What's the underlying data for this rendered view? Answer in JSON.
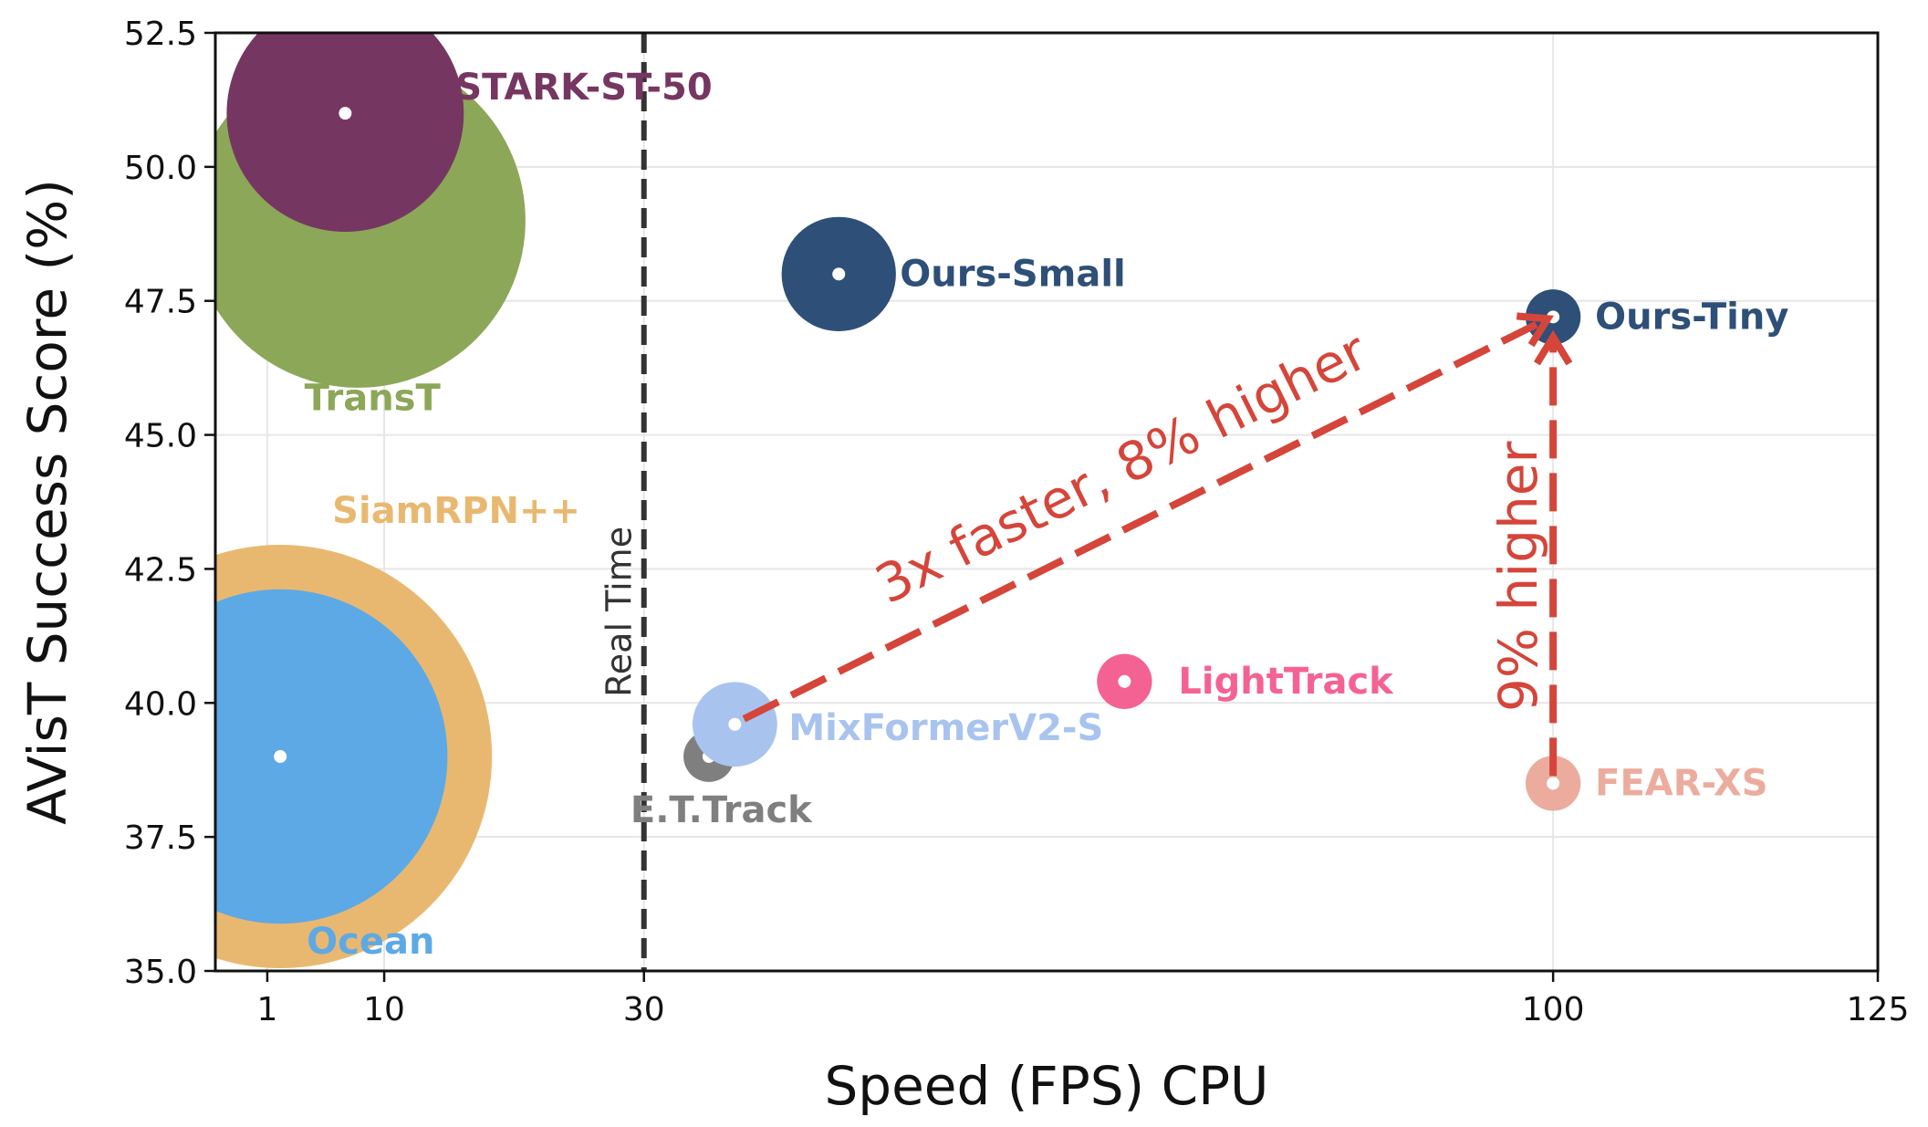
{
  "chart_data": {
    "type": "scatter",
    "xlabel": "Speed (FPS) CPU",
    "ylabel": "AVisT Success Score (%)",
    "xlim": [
      -3,
      125
    ],
    "ylim": [
      35.0,
      52.5
    ],
    "x_ticks": [
      1,
      10,
      30,
      100,
      125
    ],
    "y_ticks": [
      "35.0",
      "37.5",
      "40.0",
      "42.5",
      "45.0",
      "47.5",
      "50.0",
      "52.5"
    ],
    "grid": true,
    "reference_line": {
      "x": 30,
      "label": "Real Time",
      "style": "dashed"
    },
    "points": [
      {
        "name": "SiamRPN++",
        "x": 2,
        "y": 39.0,
        "relative_size": 1.0,
        "color": "#E9B870",
        "label_color": "#E9B870"
      },
      {
        "name": "Ocean",
        "x": 2,
        "y": 39.0,
        "relative_size": 0.79,
        "color": "#5DA9E6",
        "label_color": "#5DA9E6"
      },
      {
        "name": "TransT",
        "x": 8,
        "y": 49.0,
        "relative_size": 0.79,
        "color": "#8CA757",
        "label_color": "#8CA757"
      },
      {
        "name": "STARK-ST-50",
        "x": 7,
        "y": 51.0,
        "relative_size": 0.56,
        "color": "#763662",
        "label_color": "#763662"
      },
      {
        "name": "E.T.Track",
        "x": 35,
        "y": 39.0,
        "relative_size": 0.12,
        "color": "#7F7F7F",
        "label_color": "#7F7F7F"
      },
      {
        "name": "MixFormerV2-S",
        "x": 37,
        "y": 39.6,
        "relative_size": 0.2,
        "color": "#A8C4EE",
        "label_color": "#A8C4EE"
      },
      {
        "name": "Ours-Small",
        "x": 45,
        "y": 48.0,
        "relative_size": 0.27,
        "color": "#2E4F78",
        "label_color": "#2E4F78"
      },
      {
        "name": "LightTrack",
        "x": 67,
        "y": 40.4,
        "relative_size": 0.13,
        "color": "#F46293",
        "label_color": "#F46293"
      },
      {
        "name": "Ours-Tiny",
        "x": 100,
        "y": 47.2,
        "relative_size": 0.13,
        "color": "#2E4F78",
        "label_color": "#2E4F78"
      },
      {
        "name": "FEAR-XS",
        "x": 100,
        "y": 38.5,
        "relative_size": 0.13,
        "color": "#EBAC9E",
        "label_color": "#EBAC9E"
      }
    ],
    "annotations": [
      {
        "text": "3x faster, 8% higher",
        "from": [
          37,
          39.6
        ],
        "to": [
          100,
          47.2
        ],
        "color": "#D5453A"
      },
      {
        "text": "9% higher",
        "from": [
          100,
          38.5
        ],
        "to": [
          100,
          47.2
        ],
        "color": "#D5453A"
      }
    ]
  }
}
